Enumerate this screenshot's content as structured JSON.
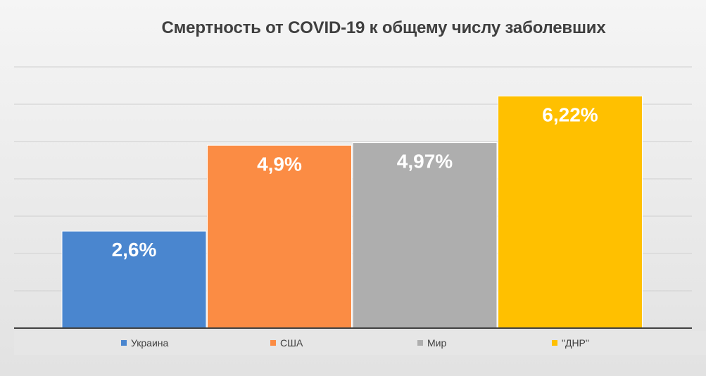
{
  "chart_data": {
    "type": "bar",
    "title": "Смертность от COVID-19 к общему числу заболевших",
    "categories": [
      "Украина",
      "США",
      "Мир",
      "\"ДНР\""
    ],
    "values": [
      2.6,
      4.9,
      4.97,
      6.22
    ],
    "data_labels": [
      "2,6%",
      "4,9%",
      "4,97%",
      "6,22%"
    ],
    "colors": [
      "#4a86cf",
      "#fb8c44",
      "#aeaeae",
      "#ffc000"
    ],
    "xlabel": "",
    "ylabel": "",
    "ylim": [
      0,
      7
    ],
    "grid": true,
    "legend": "bottom"
  }
}
